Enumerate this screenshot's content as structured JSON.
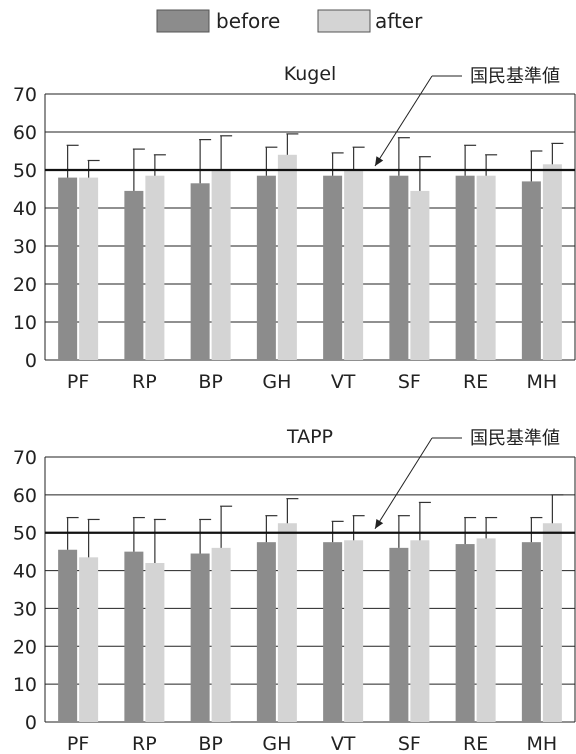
{
  "legend": [
    {
      "label": "before",
      "color": "#8c8c8c"
    },
    {
      "label": "after",
      "color": "#d4d4d4"
    }
  ],
  "colors": {
    "before": "#8c8c8c",
    "after": "#d4d4d4",
    "grid": "#222222",
    "reference_line": "#111111"
  },
  "chart_data": [
    {
      "type": "bar",
      "title": "Kugel",
      "categories": [
        "PF",
        "RP",
        "BP",
        "GH",
        "VT",
        "SF",
        "RE",
        "MH"
      ],
      "series": [
        {
          "name": "before",
          "values": [
            48,
            44.5,
            46.5,
            48.5,
            48.5,
            48.5,
            48.5,
            47
          ],
          "error": [
            8.5,
            11,
            11.5,
            7.5,
            6,
            10,
            8,
            8
          ]
        },
        {
          "name": "after",
          "values": [
            48,
            48.5,
            50,
            54,
            50,
            44.5,
            48.5,
            51.5
          ],
          "error": [
            4.5,
            5.5,
            9,
            5.5,
            6,
            9,
            5.5,
            5.5
          ]
        }
      ],
      "reference_line": {
        "value": 50,
        "label": "国民基準値"
      },
      "ylim": [
        0,
        70
      ],
      "yticks": [
        0,
        10,
        20,
        30,
        40,
        50,
        60,
        70
      ],
      "grid": true,
      "legend_position": "top-center"
    },
    {
      "type": "bar",
      "title": "TAPP",
      "categories": [
        "PF",
        "RP",
        "BP",
        "GH",
        "VT",
        "SF",
        "RE",
        "MH"
      ],
      "series": [
        {
          "name": "before",
          "values": [
            45.5,
            45,
            44.5,
            47.5,
            47.5,
            46,
            47,
            47.5
          ],
          "error": [
            8.5,
            9,
            9,
            7,
            5.5,
            8.5,
            7,
            6.5
          ]
        },
        {
          "name": "after",
          "values": [
            43.5,
            42,
            46,
            52.5,
            48,
            48,
            48.5,
            52.5
          ],
          "error": [
            10,
            11.5,
            11,
            6.5,
            6.5,
            10,
            5.5,
            7.5
          ]
        }
      ],
      "reference_line": {
        "value": 50,
        "label": "国民基準値"
      },
      "ylim": [
        0,
        70
      ],
      "yticks": [
        0,
        10,
        20,
        30,
        40,
        50,
        60,
        70
      ],
      "grid": true
    }
  ]
}
